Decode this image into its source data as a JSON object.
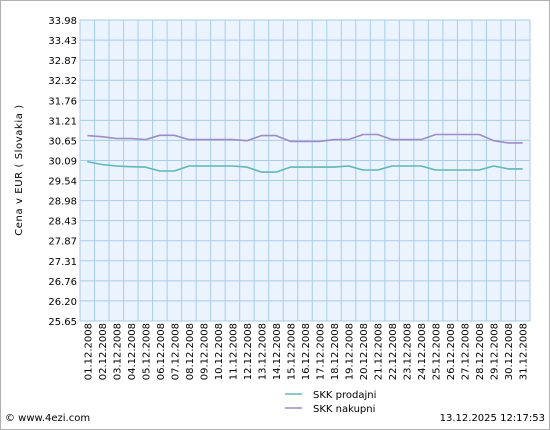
{
  "chart_data": {
    "type": "line",
    "ylabel": "Cena v EUR ( Slovakia )",
    "xlabel": "",
    "ylim": [
      25.65,
      33.98
    ],
    "yticks": [
      "33.98",
      "33.43",
      "32.87",
      "32.32",
      "31.76",
      "31.21",
      "30.65",
      "30.09",
      "29.54",
      "28.98",
      "28.43",
      "27.87",
      "27.31",
      "26.76",
      "26.20",
      "25.65"
    ],
    "grid": true,
    "legend": "bottom-center",
    "background_color": "#eaf3fe",
    "grid_color": "#a8cdea",
    "x": [
      "01.12.2008",
      "02.12.2008",
      "03.12.2008",
      "04.12.2008",
      "05.12.2008",
      "06.12.2008",
      "07.12.2008",
      "08.12.2008",
      "09.12.2008",
      "10.12.2008",
      "11.12.2008",
      "12.12.2008",
      "13.12.2008",
      "14.12.2008",
      "15.12.2008",
      "16.12.2008",
      "17.12.2008",
      "18.12.2008",
      "19.12.2008",
      "20.12.2008",
      "21.12.2008",
      "22.12.2008",
      "23.12.2008",
      "24.12.2008",
      "25.12.2008",
      "26.12.2008",
      "27.12.2008",
      "28.12.2008",
      "29.12.2008",
      "30.12.2008",
      "31.12.2008"
    ],
    "series": [
      {
        "name": "SKK prodajni",
        "color": "#5fb8b8",
        "values": [
          30.06,
          29.98,
          29.94,
          29.92,
          29.91,
          29.8,
          29.8,
          29.94,
          29.94,
          29.94,
          29.94,
          29.91,
          29.77,
          29.77,
          29.91,
          29.91,
          29.91,
          29.91,
          29.94,
          29.83,
          29.83,
          29.94,
          29.94,
          29.94,
          29.83,
          29.83,
          29.83,
          29.83,
          29.94,
          29.86,
          29.86
        ]
      },
      {
        "name": "SKK nakupni",
        "color": "#a08cc4",
        "values": [
          30.78,
          30.75,
          30.7,
          30.7,
          30.67,
          30.79,
          30.79,
          30.67,
          30.67,
          30.67,
          30.67,
          30.64,
          30.78,
          30.78,
          30.62,
          30.62,
          30.62,
          30.67,
          30.67,
          30.81,
          30.81,
          30.67,
          30.67,
          30.67,
          30.81,
          30.81,
          30.81,
          30.81,
          30.64,
          30.58,
          30.58
        ]
      }
    ]
  },
  "footer": {
    "copyright": "© www.4ezi.com",
    "timestamp": "13.12.2025 12:17:53"
  }
}
